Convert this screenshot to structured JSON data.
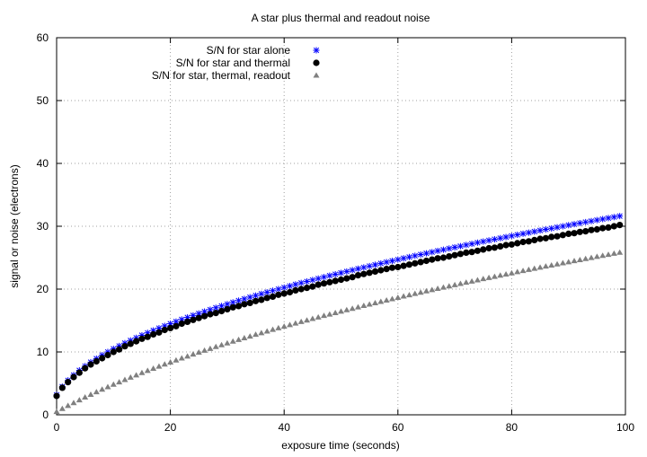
{
  "chart_data": {
    "type": "scatter",
    "title": "A star plus thermal and readout noise",
    "xlabel": "exposure time (seconds)",
    "ylabel": "signal or noise (electrons)",
    "xlim": [
      0,
      100
    ],
    "ylim": [
      0,
      60
    ],
    "xticks": [
      "0",
      "20",
      "40",
      "60",
      "80",
      "100"
    ],
    "yticks": [
      "0",
      "10",
      "20",
      "30",
      "40",
      "50",
      "60"
    ],
    "grid": true,
    "legend_position": "top-left",
    "x_start": 0,
    "x_step": 1,
    "series": [
      {
        "name": "S/N for star alone",
        "color": "#0000ff",
        "marker": "asterisk",
        "values": [
          3.16,
          4.47,
          5.48,
          6.32,
          7.07,
          7.75,
          8.37,
          8.94,
          9.49,
          10,
          10.49,
          10.95,
          11.4,
          11.83,
          12.25,
          12.65,
          13.04,
          13.42,
          13.78,
          14.14,
          14.49,
          14.83,
          15.17,
          15.49,
          15.81,
          16.12,
          16.43,
          16.73,
          17.03,
          17.32,
          17.61,
          17.89,
          18.17,
          18.44,
          18.71,
          18.97,
          19.24,
          19.49,
          19.75,
          20,
          20.25,
          20.49,
          20.74,
          20.98,
          21.21,
          21.45,
          21.68,
          21.91,
          22.14,
          22.36,
          22.58,
          22.8,
          23.02,
          23.24,
          23.45,
          23.66,
          23.87,
          24.08,
          24.29,
          24.49,
          24.7,
          24.9,
          25.1,
          25.3,
          25.5,
          25.69,
          25.88,
          26.08,
          26.27,
          26.46,
          26.65,
          26.83,
          27.02,
          27.2,
          27.39,
          27.57,
          27.75,
          27.93,
          28.11,
          28.28,
          28.46,
          28.64,
          28.81,
          28.98,
          29.15,
          29.33,
          29.5,
          29.66,
          29.83,
          30,
          30.17,
          30.33,
          30.5,
          30.66,
          30.82,
          30.98,
          31.14,
          31.3,
          31.46,
          31.62
        ]
      },
      {
        "name": "S/N for star and thermal",
        "color": "#000000",
        "marker": "circle",
        "values": [
          3.0,
          4.3,
          5.2,
          6.0,
          6.7,
          7.4,
          8.0,
          8.5,
          9.0,
          9.5,
          10.0,
          10.4,
          10.9,
          11.3,
          11.7,
          12.1,
          12.4,
          12.8,
          13.1,
          13.5,
          13.8,
          14.1,
          14.5,
          14.8,
          15.1,
          15.4,
          15.7,
          16.0,
          16.2,
          16.5,
          16.8,
          17.1,
          17.3,
          17.6,
          17.8,
          18.1,
          18.3,
          18.6,
          18.8,
          19.1,
          19.3,
          19.5,
          19.8,
          20.0,
          20.2,
          20.4,
          20.7,
          20.9,
          21.1,
          21.3,
          21.5,
          21.7,
          21.9,
          22.2,
          22.4,
          22.6,
          22.8,
          23.0,
          23.2,
          23.4,
          23.5,
          23.7,
          23.9,
          24.1,
          24.3,
          24.5,
          24.7,
          24.9,
          25.0,
          25.2,
          25.4,
          25.6,
          25.8,
          25.9,
          26.1,
          26.3,
          26.5,
          26.6,
          26.8,
          27.0,
          27.1,
          27.3,
          27.5,
          27.6,
          27.8,
          28.0,
          28.1,
          28.3,
          28.4,
          28.6,
          28.8,
          28.9,
          29.1,
          29.2,
          29.4,
          29.5,
          29.7,
          29.8,
          30.0,
          30.2
        ]
      },
      {
        "name": "S/N for star, thermal, readout",
        "color": "#808080",
        "marker": "triangle",
        "values": [
          0.49,
          0.97,
          1.44,
          1.9,
          2.34,
          2.78,
          3.21,
          3.62,
          4.03,
          4.43,
          4.82,
          5.2,
          5.58,
          5.95,
          6.31,
          6.67,
          7.02,
          7.36,
          7.7,
          8.03,
          8.36,
          8.68,
          9.0,
          9.31,
          9.62,
          9.93,
          10.23,
          10.52,
          10.82,
          11.1,
          11.39,
          11.67,
          11.95,
          12.22,
          12.49,
          12.76,
          13.02,
          13.29,
          13.55,
          13.8,
          14.06,
          14.31,
          14.55,
          14.8,
          15.04,
          15.28,
          15.52,
          15.76,
          15.99,
          16.22,
          16.45,
          16.68,
          16.9,
          17.13,
          17.35,
          17.57,
          17.79,
          18.0,
          18.22,
          18.43,
          18.64,
          18.85,
          19.06,
          19.26,
          19.47,
          19.67,
          19.87,
          20.07,
          20.27,
          20.46,
          20.66,
          20.85,
          21.05,
          21.24,
          21.43,
          21.62,
          21.81,
          21.99,
          22.18,
          22.36,
          22.54,
          22.73,
          22.91,
          23.09,
          23.26,
          23.44,
          23.62,
          23.79,
          23.97,
          24.14,
          24.31,
          24.48,
          24.65,
          24.82,
          24.99,
          25.16,
          25.33,
          25.49,
          25.66,
          25.82
        ]
      }
    ]
  }
}
